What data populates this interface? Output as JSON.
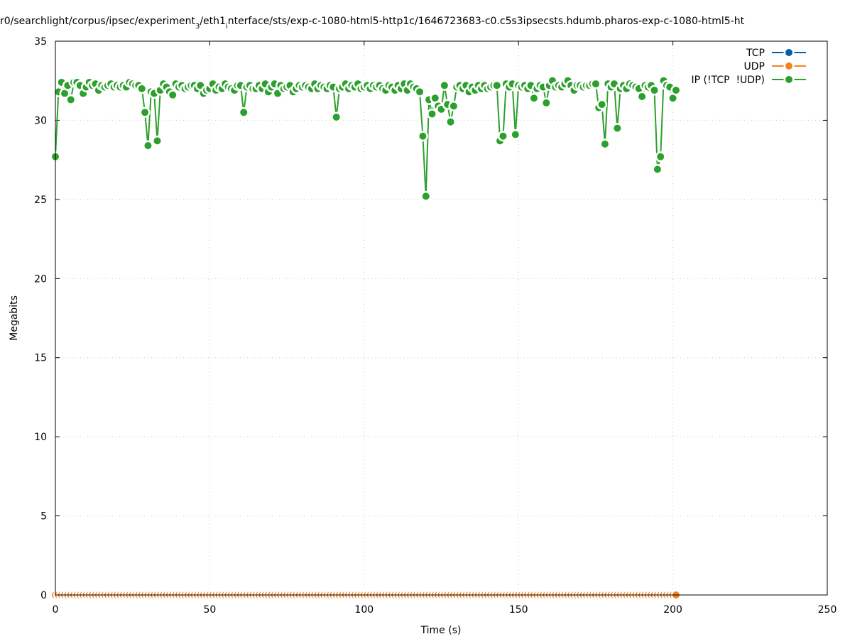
{
  "chart_data": {
    "type": "line",
    "title": [
      "r0/searchlight/corpus/ipsec/experiment",
      "3",
      "/eth1",
      "i",
      "nterface/sts/exp-c-1080-html5-http1c/1646723683-c0.c5s3ipsecsts.hdumb.pharos-exp-c-1080-html5-ht"
    ],
    "x_label": "Time (s)",
    "y_label": "Megabits",
    "xlim": [
      0,
      250
    ],
    "ylim": [
      0,
      35
    ],
    "xticks": [
      0,
      50,
      100,
      150,
      200,
      250
    ],
    "yticks": [
      0,
      5,
      10,
      15,
      20,
      25,
      30,
      35
    ],
    "grid": true,
    "legend": "top-right",
    "x": [
      0,
      1,
      2,
      3,
      4,
      5,
      6,
      7,
      8,
      9,
      10,
      11,
      12,
      13,
      14,
      15,
      16,
      17,
      18,
      19,
      20,
      21,
      22,
      23,
      24,
      25,
      26,
      27,
      28,
      29,
      30,
      31,
      32,
      33,
      34,
      35,
      36,
      37,
      38,
      39,
      40,
      41,
      42,
      43,
      44,
      45,
      46,
      47,
      48,
      49,
      50,
      51,
      52,
      53,
      54,
      55,
      56,
      57,
      58,
      59,
      60,
      61,
      62,
      63,
      64,
      65,
      66,
      67,
      68,
      69,
      70,
      71,
      72,
      73,
      74,
      75,
      76,
      77,
      78,
      79,
      80,
      81,
      82,
      83,
      84,
      85,
      86,
      87,
      88,
      89,
      90,
      91,
      92,
      93,
      94,
      95,
      96,
      97,
      98,
      99,
      100,
      101,
      102,
      103,
      104,
      105,
      106,
      107,
      108,
      109,
      110,
      111,
      112,
      113,
      114,
      115,
      116,
      117,
      118,
      119,
      120,
      121,
      122,
      123,
      124,
      125,
      126,
      127,
      128,
      129,
      130,
      131,
      132,
      133,
      134,
      135,
      136,
      137,
      138,
      139,
      140,
      141,
      142,
      143,
      144,
      145,
      146,
      147,
      148,
      149,
      150,
      151,
      152,
      153,
      154,
      155,
      156,
      157,
      158,
      159,
      160,
      161,
      162,
      163,
      164,
      165,
      166,
      167,
      168,
      169,
      170,
      171,
      172,
      173,
      174,
      175,
      176,
      177,
      178,
      179,
      180,
      181,
      182,
      183,
      184,
      185,
      186,
      187,
      188,
      189,
      190,
      191,
      192,
      193,
      194,
      195,
      196,
      197,
      198,
      199,
      200,
      201
    ],
    "series": [
      {
        "name": "TCP",
        "color": "#0060ad",
        "values": [
          0,
          0,
          0,
          0,
          0,
          0,
          0,
          0,
          0,
          0,
          0,
          0,
          0,
          0,
          0,
          0,
          0,
          0,
          0,
          0,
          0,
          0,
          0,
          0,
          0,
          0,
          0,
          0,
          0,
          0,
          0,
          0,
          0,
          0,
          0,
          0,
          0,
          0,
          0,
          0,
          0,
          0,
          0,
          0,
          0,
          0,
          0,
          0,
          0,
          0,
          0,
          0,
          0,
          0,
          0,
          0,
          0,
          0,
          0,
          0,
          0,
          0,
          0,
          0,
          0,
          0,
          0,
          0,
          0,
          0,
          0,
          0,
          0,
          0,
          0,
          0,
          0,
          0,
          0,
          0,
          0,
          0,
          0,
          0,
          0,
          0,
          0,
          0,
          0,
          0,
          0,
          0,
          0,
          0,
          0,
          0,
          0,
          0,
          0,
          0,
          0,
          0,
          0,
          0,
          0,
          0,
          0,
          0,
          0,
          0,
          0,
          0,
          0,
          0,
          0,
          0,
          0,
          0,
          0,
          0,
          0,
          0,
          0,
          0,
          0,
          0,
          0,
          0,
          0,
          0,
          0,
          0,
          0,
          0,
          0,
          0,
          0,
          0,
          0,
          0,
          0,
          0,
          0,
          0,
          0,
          0,
          0,
          0,
          0,
          0,
          0,
          0,
          0,
          0,
          0,
          0,
          0,
          0,
          0,
          0,
          0,
          0,
          0,
          0,
          0,
          0,
          0,
          0,
          0,
          0,
          0,
          0,
          0,
          0,
          0,
          0,
          0,
          0,
          0,
          0,
          0,
          0,
          0,
          0,
          0,
          0,
          0,
          0,
          0,
          0,
          0,
          0,
          0,
          0,
          0,
          0,
          0,
          0,
          0,
          0,
          0,
          0
        ]
      },
      {
        "name": "UDP",
        "color": "#f5821f",
        "values": [
          0,
          0,
          0,
          0,
          0,
          0,
          0,
          0,
          0,
          0,
          0,
          0,
          0,
          0,
          0,
          0,
          0,
          0,
          0,
          0,
          0,
          0,
          0,
          0,
          0,
          0,
          0,
          0,
          0,
          0,
          0,
          0,
          0,
          0,
          0,
          0,
          0,
          0,
          0,
          0,
          0,
          0,
          0,
          0,
          0,
          0,
          0,
          0,
          0,
          0,
          0,
          0,
          0,
          0,
          0,
          0,
          0,
          0,
          0,
          0,
          0,
          0,
          0,
          0,
          0,
          0,
          0,
          0,
          0,
          0,
          0,
          0,
          0,
          0,
          0,
          0,
          0,
          0,
          0,
          0,
          0,
          0,
          0,
          0,
          0,
          0,
          0,
          0,
          0,
          0,
          0,
          0,
          0,
          0,
          0,
          0,
          0,
          0,
          0,
          0,
          0,
          0,
          0,
          0,
          0,
          0,
          0,
          0,
          0,
          0,
          0,
          0,
          0,
          0,
          0,
          0,
          0,
          0,
          0,
          0,
          0,
          0,
          0,
          0,
          0,
          0,
          0,
          0,
          0,
          0,
          0,
          0,
          0,
          0,
          0,
          0,
          0,
          0,
          0,
          0,
          0,
          0,
          0,
          0,
          0,
          0,
          0,
          0,
          0,
          0,
          0,
          0,
          0,
          0,
          0,
          0,
          0,
          0,
          0,
          0,
          0,
          0,
          0,
          0,
          0,
          0,
          0,
          0,
          0,
          0,
          0,
          0,
          0,
          0,
          0,
          0,
          0,
          0,
          0,
          0,
          0,
          0,
          0,
          0,
          0,
          0,
          0,
          0,
          0,
          0,
          0,
          0,
          0,
          0,
          0,
          0,
          0,
          0,
          0,
          0,
          0,
          0
        ]
      },
      {
        "name": "IP (!TCP  !UDP)",
        "color": "#2ca02c",
        "values": [
          27.7,
          31.8,
          32.4,
          31.7,
          32.2,
          31.3,
          32.4,
          32.4,
          32.2,
          31.7,
          32.1,
          32.4,
          32.2,
          32.3,
          31.9,
          32.2,
          32.1,
          32.2,
          32.3,
          32.1,
          32.2,
          32.1,
          32.2,
          32.1,
          32.4,
          32.3,
          32.2,
          32.2,
          32.0,
          30.5,
          28.4,
          31.8,
          31.7,
          28.7,
          31.9,
          32.3,
          32.1,
          31.8,
          31.6,
          32.3,
          32.1,
          32.2,
          32.0,
          32.1,
          32.2,
          32.2,
          32.0,
          32.2,
          31.7,
          31.9,
          32.0,
          32.3,
          31.9,
          32.1,
          32.0,
          32.3,
          32.1,
          32.0,
          31.9,
          32.2,
          32.2,
          30.5,
          32.1,
          32.2,
          32.0,
          32.0,
          32.2,
          32.0,
          32.3,
          31.8,
          32.1,
          32.3,
          31.7,
          32.2,
          32.0,
          32.1,
          32.2,
          31.8,
          32.0,
          32.2,
          32.1,
          32.2,
          32.1,
          32.0,
          32.3,
          32.0,
          32.2,
          32.1,
          32.0,
          32.2,
          32.1,
          30.2,
          32.0,
          32.1,
          32.3,
          32.0,
          32.2,
          32.1,
          32.3,
          32.0,
          32.1,
          32.2,
          32.0,
          32.2,
          32.1,
          32.2,
          32.0,
          31.9,
          32.2,
          32.1,
          31.9,
          32.2,
          32.0,
          32.3,
          31.9,
          32.3,
          32.1,
          32.0,
          31.8,
          29.0,
          25.2,
          31.3,
          30.4,
          31.4,
          30.9,
          30.7,
          32.2,
          31.0,
          29.9,
          30.9,
          32.1,
          32.2,
          32.0,
          32.2,
          31.8,
          32.1,
          31.9,
          32.2,
          32.0,
          32.2,
          32.0,
          32.1,
          32.2,
          32.2,
          28.7,
          29.0,
          32.3,
          32.1,
          32.3,
          29.1,
          32.2,
          32.1,
          32.2,
          32.0,
          32.2,
          31.4,
          32.0,
          32.2,
          32.1,
          31.1,
          32.2,
          32.5,
          32.1,
          32.2,
          32.1,
          32.3,
          32.5,
          32.2,
          31.9,
          32.2,
          32.2,
          32.1,
          32.2,
          32.2,
          32.3,
          32.3,
          30.8,
          31.0,
          28.5,
          32.3,
          32.1,
          32.3,
          29.5,
          32.0,
          32.2,
          32.0,
          32.3,
          32.2,
          32.1,
          32.0,
          31.5,
          32.2,
          32.1,
          32.2,
          31.9,
          26.9,
          27.7,
          32.5,
          32.2,
          32.1,
          31.4,
          31.9
        ]
      }
    ]
  }
}
